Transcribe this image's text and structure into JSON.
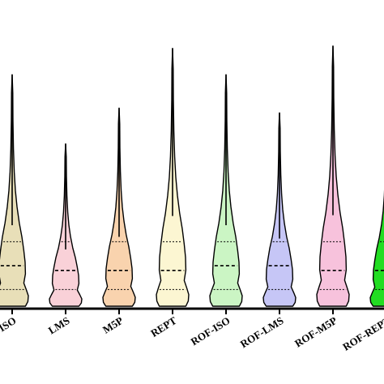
{
  "chart_data": {
    "type": "violin",
    "categories": [
      "ISO",
      "LMS",
      "M5P",
      "REPT",
      "ROF-ISO",
      "ROF-LMS",
      "ROF-M5P",
      "ROF-REPT"
    ],
    "tick_labels": [
      "ISO",
      "LMS",
      "M5P",
      "REPT",
      "ROF-ISO",
      "ROF-LMS",
      "ROF-M5P",
      "ROF-REPT"
    ],
    "title": "",
    "xlabel": "",
    "ylabel": "",
    "grid": false,
    "legend": "none",
    "violins": [
      {
        "category": "ISO",
        "color": "#e8dfb8",
        "min": 0,
        "max": 0.97,
        "q1": 0.07,
        "median": 0.17,
        "q3": 0.27
      },
      {
        "category": "LMS",
        "color": "#f9d1d8",
        "min": 0,
        "max": 0.68,
        "q1": 0.07,
        "median": 0.15,
        "q3": 0.27
      },
      {
        "category": "M5P",
        "color": "#f9d3ae",
        "min": 0,
        "max": 0.83,
        "q1": 0.07,
        "median": 0.15,
        "q3": 0.27
      },
      {
        "category": "REPT",
        "color": "#fcf6d2",
        "min": 0,
        "max": 1.08,
        "q1": 0.07,
        "median": 0.15,
        "q3": 0.27
      },
      {
        "category": "ROF-ISO",
        "color": "#cbf5c4",
        "min": 0,
        "max": 0.97,
        "q1": 0.07,
        "median": 0.17,
        "q3": 0.27
      },
      {
        "category": "ROF-LMS",
        "color": "#c6c6f6",
        "min": 0,
        "max": 0.81,
        "q1": 0.07,
        "median": 0.17,
        "q3": 0.27
      },
      {
        "category": "ROF-M5P",
        "color": "#f7c2dc",
        "min": 0,
        "max": 1.09,
        "q1": 0.07,
        "median": 0.15,
        "q3": 0.27
      },
      {
        "category": "ROF-REPT",
        "color": "#22dd22",
        "min": 0,
        "max": 0.8,
        "q1": 0.07,
        "median": 0.15,
        "q3": 0.27
      }
    ],
    "ylim": [
      0,
      1.13
    ]
  }
}
